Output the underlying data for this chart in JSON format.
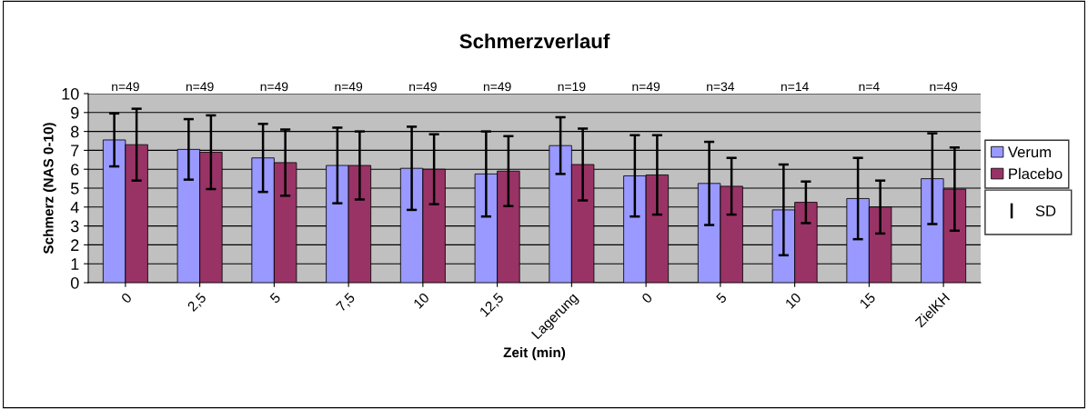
{
  "chart_data": {
    "type": "bar",
    "title": "Schmerzverlauf",
    "xlabel": "Zeit (min)",
    "ylabel": "Schmerz (NAS 0-10)",
    "categories": [
      "0",
      "2,5",
      "5",
      "7,5",
      "10",
      "12,5",
      "Lagerung",
      "0",
      "5",
      "10",
      "15",
      "ZielKH"
    ],
    "series": [
      {
        "name": "Verum",
        "color": "#9999ff",
        "values": [
          7.55,
          7.05,
          6.6,
          6.2,
          6.05,
          5.75,
          7.25,
          5.65,
          5.25,
          3.85,
          4.45,
          5.5
        ],
        "errors": [
          1.4,
          1.6,
          1.8,
          2.0,
          2.2,
          2.25,
          1.5,
          2.15,
          2.2,
          2.4,
          2.15,
          2.4
        ]
      },
      {
        "name": "Placebo",
        "color": "#993366",
        "values": [
          7.3,
          6.9,
          6.35,
          6.2,
          6.0,
          5.9,
          6.25,
          5.7,
          5.1,
          4.25,
          4.0,
          4.95
        ],
        "errors": [
          1.9,
          1.95,
          1.75,
          1.8,
          1.85,
          1.85,
          1.9,
          2.1,
          1.5,
          1.1,
          1.4,
          2.2
        ]
      }
    ],
    "ylim": [
      0,
      10
    ],
    "yticks": [
      0,
      1,
      2,
      3,
      4,
      5,
      6,
      7,
      8,
      9,
      10
    ],
    "grid": "y",
    "legend": "right",
    "annotations": [
      "n=49",
      "n=49",
      "n=49",
      "n=49",
      "n=49",
      "n=49",
      "n=19",
      "n=49",
      "n=34",
      "n=14",
      "n=4",
      "n=49",
      "SD"
    ]
  }
}
